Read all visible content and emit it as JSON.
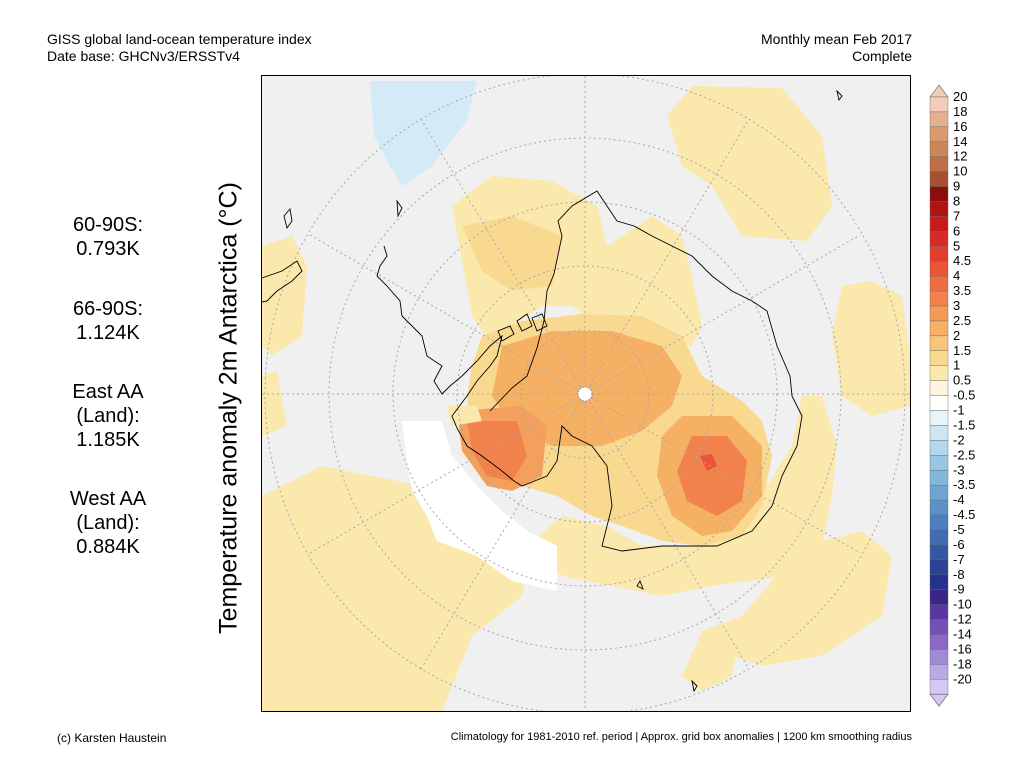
{
  "header": {
    "title_line1": "GISS global land-ocean temperature index",
    "title_line2": "Date base: GHCNv3/ERSSTv4",
    "period_line1": "Monthly mean Feb 2017",
    "period_line2": "Complete"
  },
  "y_axis_label": "Temperature anomaly 2m Antarctica (°C)",
  "stats": [
    {
      "lines": [
        "60-90S:",
        "0.793K"
      ]
    },
    {
      "lines": [
        "66-90S:",
        "1.124K"
      ]
    },
    {
      "lines": [
        "East AA",
        "(Land):",
        "1.185K"
      ]
    },
    {
      "lines": [
        "West AA",
        "(Land):",
        "0.884K"
      ]
    }
  ],
  "footer": {
    "credit": "(c) Karsten Haustein",
    "note": "Climatology for 1981-2010 ref. period | Approx. grid box anomalies | 1200 km smoothing radius"
  },
  "colorbar": {
    "labels": [
      "20",
      "18",
      "16",
      "14",
      "12",
      "10",
      "9",
      "8",
      "7",
      "6",
      "5",
      "4.5",
      "4",
      "3.5",
      "3",
      "2.5",
      "2",
      "1.5",
      "1",
      "0.5",
      "-0.5",
      "-1",
      "-1.5",
      "-2",
      "-2.5",
      "-3",
      "-3.5",
      "-4",
      "-4.5",
      "-5",
      "-6",
      "-7",
      "-8",
      "-9",
      "-10",
      "-12",
      "-14",
      "-16",
      "-18",
      "-20"
    ],
    "colors": [
      "#f3cdb8",
      "#e6b08f",
      "#d99a72",
      "#cc865c",
      "#bd6f48",
      "#a85034",
      "#8e0c0c",
      "#b01313",
      "#c81c1c",
      "#d72a24",
      "#e23e2e",
      "#ea5538",
      "#ef6d40",
      "#f2824b",
      "#f49a58",
      "#f6b064",
      "#f7c678",
      "#f9d990",
      "#fbe8ad",
      "#fdf5e1",
      "#ffffff",
      "#e8f3fa",
      "#cde6f3",
      "#b3d7ec",
      "#98c7e3",
      "#83b7da",
      "#6da5d1",
      "#5a91c6",
      "#4c7fbb",
      "#3f6db0",
      "#3457a1",
      "#2b4296",
      "#25328a",
      "#3b2488",
      "#5a36a0",
      "#7450b5",
      "#8a68c7",
      "#a08ad6",
      "#b9a8e3",
      "#d3c8f0"
    ]
  }
}
